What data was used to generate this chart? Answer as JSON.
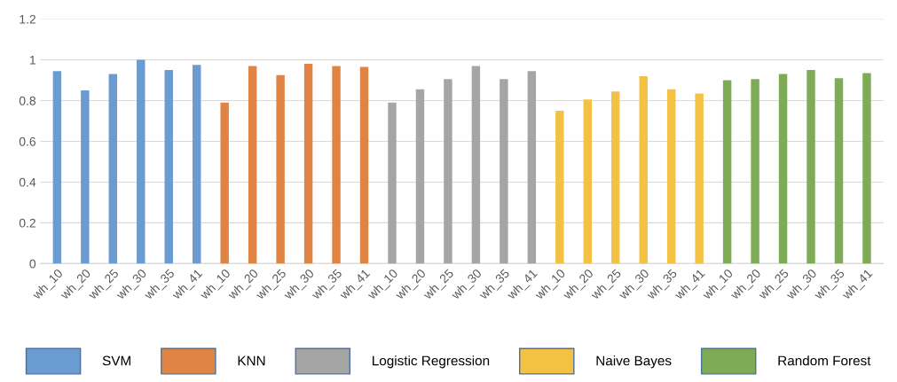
{
  "chart_data": {
    "type": "bar",
    "categories": [
      "wh_10",
      "wh_20",
      "wh_25",
      "wh_30",
      "wh_35",
      "wh_41",
      "wh_10",
      "wh_20",
      "wh_25",
      "wh_30",
      "wh_35",
      "wh_41",
      "wh_10",
      "wh_20",
      "wh_25",
      "wh_30",
      "wh_35",
      "wh_41",
      "wh_10",
      "wh_20",
      "wh_25",
      "wh_30",
      "wh_35",
      "wh_41",
      "wh_10",
      "wh_20",
      "wh_25",
      "wh_30",
      "wh_35",
      "wh_41"
    ],
    "series": [
      {
        "name": "SVM",
        "color": "#6a9bd1",
        "values": [
          0.945,
          0.85,
          0.93,
          1.0,
          0.95,
          0.975,
          null,
          null,
          null,
          null,
          null,
          null,
          null,
          null,
          null,
          null,
          null,
          null,
          null,
          null,
          null,
          null,
          null,
          null,
          null,
          null,
          null,
          null,
          null,
          null
        ]
      },
      {
        "name": "KNN",
        "color": "#e08444",
        "values": [
          null,
          null,
          null,
          null,
          null,
          null,
          0.79,
          0.97,
          0.925,
          0.98,
          0.97,
          0.965,
          null,
          null,
          null,
          null,
          null,
          null,
          null,
          null,
          null,
          null,
          null,
          null,
          null,
          null,
          null,
          null,
          null,
          null
        ]
      },
      {
        "name": "Logistic Regression",
        "color": "#a5a5a5",
        "values": [
          null,
          null,
          null,
          null,
          null,
          null,
          null,
          null,
          null,
          null,
          null,
          null,
          0.79,
          0.855,
          0.905,
          0.97,
          0.905,
          0.945,
          null,
          null,
          null,
          null,
          null,
          null,
          null,
          null,
          null,
          null,
          null,
          null
        ]
      },
      {
        "name": "Naive Bayes",
        "color": "#f3c244",
        "values": [
          null,
          null,
          null,
          null,
          null,
          null,
          null,
          null,
          null,
          null,
          null,
          null,
          null,
          null,
          null,
          null,
          null,
          null,
          0.75,
          0.805,
          0.845,
          0.92,
          0.855,
          0.835,
          null,
          null,
          null,
          null,
          null,
          null
        ]
      },
      {
        "name": "Random Forest",
        "color": "#7eab55",
        "values": [
          null,
          null,
          null,
          null,
          null,
          null,
          null,
          null,
          null,
          null,
          null,
          null,
          null,
          null,
          null,
          null,
          null,
          null,
          null,
          null,
          null,
          null,
          null,
          null,
          0.9,
          0.905,
          0.93,
          0.95,
          0.91,
          0.935
        ]
      }
    ],
    "ylim": [
      0,
      1.2
    ],
    "yticks": [
      0,
      0.2,
      0.4,
      0.6,
      0.8,
      1,
      1.2
    ],
    "grid": "y",
    "legend": "bottom"
  }
}
